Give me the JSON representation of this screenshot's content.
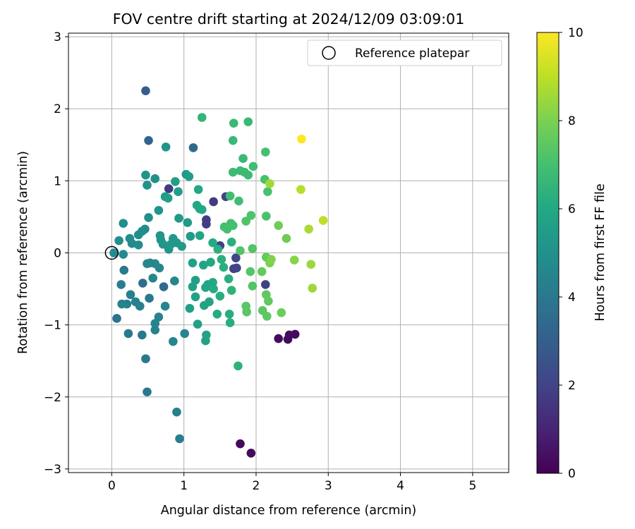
{
  "chart_data": {
    "type": "scatter",
    "title": "FOV centre drift starting at 2024/12/09 03:09:01",
    "xlabel": "Angular distance from reference (arcmin)",
    "ylabel": "Rotation from reference (arcmin)",
    "xlim": [
      -0.6,
      5.5
    ],
    "ylim": [
      -3.05,
      3.05
    ],
    "xticks": [
      0,
      1,
      2,
      3,
      4,
      5
    ],
    "yticks": [
      -3,
      -2,
      -1,
      0,
      1,
      2,
      3
    ],
    "grid": true,
    "legend": {
      "position": "top-right",
      "label": "Reference platepar"
    },
    "reference_point": {
      "x": 0,
      "y": 0
    },
    "colorbar": {
      "label": "Hours from first FF file",
      "range": [
        0,
        10
      ],
      "ticks": [
        0,
        2,
        4,
        6,
        8,
        10
      ],
      "colormap": "viridis"
    },
    "points": [
      {
        "x": 1.78,
        "y": -2.65,
        "c": 0.2
      },
      {
        "x": 1.93,
        "y": -2.78,
        "c": 0.2
      },
      {
        "x": 2.31,
        "y": -1.19,
        "c": 0.3
      },
      {
        "x": 2.46,
        "y": -1.14,
        "c": 0.3
      },
      {
        "x": 2.44,
        "y": -1.2,
        "c": 0.3
      },
      {
        "x": 2.54,
        "y": -1.13,
        "c": 0.3
      },
      {
        "x": 0.79,
        "y": 0.89,
        "c": 1.7
      },
      {
        "x": 1.41,
        "y": 0.71,
        "c": 1.7
      },
      {
        "x": 1.31,
        "y": 0.4,
        "c": 1.8
      },
      {
        "x": 1.31,
        "y": 0.46,
        "c": 1.8
      },
      {
        "x": 1.5,
        "y": 0.1,
        "c": 1.9
      },
      {
        "x": 1.69,
        "y": -0.22,
        "c": 1.9
      },
      {
        "x": 2.13,
        "y": -0.44,
        "c": 1.9
      },
      {
        "x": 1.72,
        "y": -0.07,
        "c": 2
      },
      {
        "x": 1.58,
        "y": 0.78,
        "c": 2
      },
      {
        "x": 1.73,
        "y": -0.21,
        "c": 2
      },
      {
        "x": 0.47,
        "y": 2.25,
        "c": 2.9
      },
      {
        "x": 0.51,
        "y": 1.56,
        "c": 3.2
      },
      {
        "x": 1.13,
        "y": 1.46,
        "c": 3.4
      },
      {
        "x": 0.72,
        "y": -0.47,
        "c": 3.4
      },
      {
        "x": 0.43,
        "y": -0.42,
        "c": 3.6
      },
      {
        "x": 0.07,
        "y": -0.91,
        "c": 3.8
      },
      {
        "x": 0.47,
        "y": -1.47,
        "c": 4
      },
      {
        "x": 0.49,
        "y": -1.93,
        "c": 4
      },
      {
        "x": 0.42,
        "y": -1.14,
        "c": 4
      },
      {
        "x": 0.52,
        "y": -0.63,
        "c": 4
      },
      {
        "x": 0.23,
        "y": -1.12,
        "c": 4
      },
      {
        "x": 0.17,
        "y": -0.24,
        "c": 4.1
      },
      {
        "x": 0.94,
        "y": -2.58,
        "c": 4.2
      },
      {
        "x": 0.9,
        "y": -2.21,
        "c": 4.3
      },
      {
        "x": 0.13,
        "y": -0.44,
        "c": 4.2
      },
      {
        "x": 0.21,
        "y": -0.71,
        "c": 4.3
      },
      {
        "x": 0.26,
        "y": -0.58,
        "c": 4.3
      },
      {
        "x": 0.33,
        "y": -0.68,
        "c": 4.3
      },
      {
        "x": 0.39,
        "y": -0.74,
        "c": 4.3
      },
      {
        "x": 0.14,
        "y": -0.71,
        "c": 4.4
      },
      {
        "x": 0.6,
        "y": -1.07,
        "c": 4.4
      },
      {
        "x": 0.6,
        "y": -0.98,
        "c": 4.4
      },
      {
        "x": 0.65,
        "y": -0.89,
        "c": 4.4
      },
      {
        "x": 0.74,
        "y": -0.74,
        "c": 4.5
      },
      {
        "x": 1.01,
        "y": -1.12,
        "c": 4.5
      },
      {
        "x": 0.85,
        "y": -1.23,
        "c": 4.5
      },
      {
        "x": 0.53,
        "y": -0.14,
        "c": 4.5
      },
      {
        "x": 0.6,
        "y": -0.15,
        "c": 4.6
      },
      {
        "x": 0.66,
        "y": -0.21,
        "c": 4.6
      },
      {
        "x": 0.87,
        "y": -0.39,
        "c": 4.6
      },
      {
        "x": 0.57,
        "y": -0.35,
        "c": 4.6
      },
      {
        "x": 0.49,
        "y": -0.15,
        "c": 4.6
      },
      {
        "x": 0.03,
        "y": 0.0,
        "c": 4.7
      },
      {
        "x": 0.16,
        "y": -0.02,
        "c": 4.7
      },
      {
        "x": 0.28,
        "y": 0.13,
        "c": 4.7
      },
      {
        "x": 0.25,
        "y": 0.2,
        "c": 4.8
      },
      {
        "x": 0.37,
        "y": 0.25,
        "c": 4.8
      },
      {
        "x": 0.42,
        "y": 0.3,
        "c": 4.8
      },
      {
        "x": 0.46,
        "y": 0.33,
        "c": 4.8
      },
      {
        "x": 0.37,
        "y": 0.11,
        "c": 4.8
      },
      {
        "x": 0.51,
        "y": 0.49,
        "c": 4.9
      },
      {
        "x": 0.1,
        "y": 0.17,
        "c": 4.9
      },
      {
        "x": 0.16,
        "y": 0.41,
        "c": 4.9
      },
      {
        "x": 0.6,
        "y": 1.03,
        "c": 5
      },
      {
        "x": 0.49,
        "y": 0.94,
        "c": 5
      },
      {
        "x": 0.75,
        "y": 1.47,
        "c": 5.1
      },
      {
        "x": 0.47,
        "y": 1.08,
        "c": 5.1
      },
      {
        "x": 0.65,
        "y": 0.59,
        "c": 5.1
      },
      {
        "x": 0.67,
        "y": 0.24,
        "c": 5.2
      },
      {
        "x": 0.68,
        "y": 0.18,
        "c": 5.2
      },
      {
        "x": 0.71,
        "y": 0.12,
        "c": 5.2
      },
      {
        "x": 0.79,
        "y": 0.05,
        "c": 5.2
      },
      {
        "x": 0.82,
        "y": 0.12,
        "c": 5.3
      },
      {
        "x": 0.85,
        "y": 0.2,
        "c": 5.3
      },
      {
        "x": 0.9,
        "y": 0.14,
        "c": 5.3
      },
      {
        "x": 0.93,
        "y": 0.48,
        "c": 5.3
      },
      {
        "x": 0.97,
        "y": 0.09,
        "c": 5.4
      },
      {
        "x": 1.05,
        "y": 0.42,
        "c": 5.4
      },
      {
        "x": 1.09,
        "y": 0.23,
        "c": 5.4
      },
      {
        "x": 1.03,
        "y": 1.09,
        "c": 5.4
      },
      {
        "x": 1.07,
        "y": 1.06,
        "c": 5.5
      },
      {
        "x": 0.92,
        "y": 0.85,
        "c": 5.5
      },
      {
        "x": 0.88,
        "y": 0.99,
        "c": 5.5
      },
      {
        "x": 0.74,
        "y": 0.78,
        "c": 5.5
      },
      {
        "x": 0.78,
        "y": 0.76,
        "c": 5.6
      },
      {
        "x": 1.08,
        "y": -0.77,
        "c": 5.6
      },
      {
        "x": 1.12,
        "y": -0.47,
        "c": 5.6
      },
      {
        "x": 1.16,
        "y": -0.38,
        "c": 5.6
      },
      {
        "x": 1.12,
        "y": -0.14,
        "c": 5.7
      },
      {
        "x": 1.16,
        "y": -0.61,
        "c": 5.7
      },
      {
        "x": 1.19,
        "y": -0.99,
        "c": 5.7
      },
      {
        "x": 1.3,
        "y": -1.22,
        "c": 5.7
      },
      {
        "x": 1.31,
        "y": -1.14,
        "c": 5.7
      },
      {
        "x": 1.28,
        "y": -0.73,
        "c": 5.8
      },
      {
        "x": 1.33,
        "y": -0.44,
        "c": 5.8
      },
      {
        "x": 1.27,
        "y": -0.17,
        "c": 5.8
      },
      {
        "x": 1.35,
        "y": -0.68,
        "c": 5.8
      },
      {
        "x": 1.3,
        "y": -0.48,
        "c": 5.9
      },
      {
        "x": 1.22,
        "y": 0.24,
        "c": 5.9
      },
      {
        "x": 1.18,
        "y": 0.66,
        "c": 5.9
      },
      {
        "x": 1.22,
        "y": 0.61,
        "c": 5.9
      },
      {
        "x": 1.25,
        "y": 0.6,
        "c": 6
      },
      {
        "x": 1.2,
        "y": 0.88,
        "c": 6
      },
      {
        "x": 1.37,
        "y": -0.13,
        "c": 6
      },
      {
        "x": 1.4,
        "y": -0.41,
        "c": 6
      },
      {
        "x": 1.4,
        "y": 0.14,
        "c": 6.1
      },
      {
        "x": 1.46,
        "y": -0.85,
        "c": 6.1
      },
      {
        "x": 1.41,
        "y": -0.5,
        "c": 6.1
      },
      {
        "x": 1.5,
        "y": -0.6,
        "c": 6.2
      },
      {
        "x": 1.63,
        "y": -0.85,
        "c": 6.2
      },
      {
        "x": 1.64,
        "y": -0.97,
        "c": 6.2
      },
      {
        "x": 1.62,
        "y": -0.36,
        "c": 6.2
      },
      {
        "x": 1.55,
        "y": -0.2,
        "c": 6.3
      },
      {
        "x": 1.47,
        "y": 0.05,
        "c": 6.3
      },
      {
        "x": 1.52,
        "y": -0.09,
        "c": 6.3
      },
      {
        "x": 1.66,
        "y": 0.15,
        "c": 6.3
      },
      {
        "x": 1.66,
        "y": -0.52,
        "c": 6.4
      },
      {
        "x": 1.75,
        "y": -1.57,
        "c": 6.4
      },
      {
        "x": 1.25,
        "y": 1.88,
        "c": 6.5
      },
      {
        "x": 1.69,
        "y": 1.8,
        "c": 6.7
      },
      {
        "x": 1.89,
        "y": 1.82,
        "c": 6.7
      },
      {
        "x": 1.68,
        "y": 1.56,
        "c": 6.7
      },
      {
        "x": 1.82,
        "y": 1.31,
        "c": 6.7
      },
      {
        "x": 1.68,
        "y": 1.12,
        "c": 6.8
      },
      {
        "x": 1.78,
        "y": 1.14,
        "c": 6.8
      },
      {
        "x": 1.84,
        "y": 1.12,
        "c": 6.8
      },
      {
        "x": 1.89,
        "y": 1.08,
        "c": 6.8
      },
      {
        "x": 1.96,
        "y": 1.2,
        "c": 6.9
      },
      {
        "x": 1.64,
        "y": 0.79,
        "c": 6.9
      },
      {
        "x": 1.76,
        "y": 0.72,
        "c": 6.9
      },
      {
        "x": 1.65,
        "y": 0.41,
        "c": 6.9
      },
      {
        "x": 1.68,
        "y": 0.38,
        "c": 7
      },
      {
        "x": 1.56,
        "y": 0.36,
        "c": 7
      },
      {
        "x": 1.6,
        "y": 0.33,
        "c": 7
      },
      {
        "x": 2.13,
        "y": 1.4,
        "c": 7
      },
      {
        "x": 2.12,
        "y": 1.02,
        "c": 7.1
      },
      {
        "x": 2.16,
        "y": 0.85,
        "c": 7.1
      },
      {
        "x": 2.14,
        "y": 0.51,
        "c": 7.1
      },
      {
        "x": 1.86,
        "y": 0.44,
        "c": 7.2
      },
      {
        "x": 1.93,
        "y": 0.52,
        "c": 7.2
      },
      {
        "x": 1.78,
        "y": 0.03,
        "c": 7.3
      },
      {
        "x": 1.95,
        "y": 0.06,
        "c": 7.3
      },
      {
        "x": 1.92,
        "y": -0.26,
        "c": 7.3
      },
      {
        "x": 1.95,
        "y": -0.46,
        "c": 7.3
      },
      {
        "x": 1.86,
        "y": -0.74,
        "c": 7.4
      },
      {
        "x": 1.87,
        "y": -0.82,
        "c": 7.4
      },
      {
        "x": 2.09,
        "y": -0.8,
        "c": 7.4
      },
      {
        "x": 2.15,
        "y": -0.88,
        "c": 7.5
      },
      {
        "x": 2.14,
        "y": -0.58,
        "c": 7.5
      },
      {
        "x": 2.17,
        "y": -0.67,
        "c": 7.5
      },
      {
        "x": 2.14,
        "y": -0.06,
        "c": 7.6
      },
      {
        "x": 2.08,
        "y": -0.26,
        "c": 7.6
      },
      {
        "x": 2.35,
        "y": -0.83,
        "c": 7.7
      },
      {
        "x": 2.31,
        "y": 0.38,
        "c": 7.8
      },
      {
        "x": 2.42,
        "y": 0.2,
        "c": 7.8
      },
      {
        "x": 2.19,
        "y": -0.14,
        "c": 8
      },
      {
        "x": 2.21,
        "y": -0.09,
        "c": 8.1
      },
      {
        "x": 2.53,
        "y": -0.1,
        "c": 8.2
      },
      {
        "x": 2.76,
        "y": -0.16,
        "c": 8.5
      },
      {
        "x": 2.78,
        "y": -0.49,
        "c": 8.5
      },
      {
        "x": 2.19,
        "y": 0.96,
        "c": 8.6
      },
      {
        "x": 2.73,
        "y": 0.33,
        "c": 8.7
      },
      {
        "x": 2.62,
        "y": 0.88,
        "c": 8.9
      },
      {
        "x": 2.93,
        "y": 0.45,
        "c": 9
      },
      {
        "x": 2.63,
        "y": 1.58,
        "c": 10
      }
    ]
  }
}
